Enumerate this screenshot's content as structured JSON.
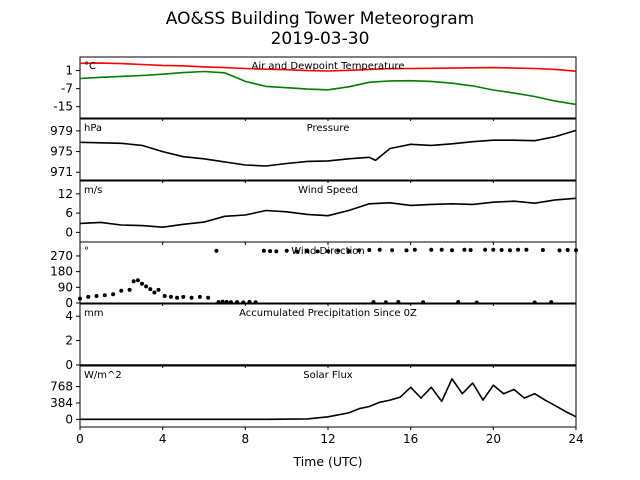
{
  "figure": {
    "title": "AO&SS Building Tower Meteorogram",
    "date": "2019-03-30",
    "xlabel": "Time (UTC)"
  },
  "chart_data": {
    "type": "line",
    "x_range": [
      0,
      24
    ],
    "x_ticks": [
      0,
      4,
      8,
      12,
      16,
      20,
      24
    ],
    "panels": [
      {
        "id": "temp",
        "title": "Air and Dewpoint Temperature",
        "unit": "°C",
        "ylim": [
          -20,
          7
        ],
        "y_ticks": [
          1,
          -7,
          -15
        ],
        "series": [
          {
            "color": "#ff0000",
            "style": "line",
            "x": [
              0,
              1,
              2,
              3,
              4,
              5,
              6,
              7,
              8,
              9,
              10,
              11,
              12,
              13,
              14,
              15,
              16,
              17,
              18,
              19,
              20,
              21,
              22,
              23,
              24
            ],
            "y": [
              4.2,
              4.3,
              4.1,
              3.7,
              3.3,
              3.1,
              2.6,
              2.3,
              1.9,
              1.6,
              1.4,
              1.0,
              0.8,
              1.1,
              1.5,
              1.8,
              1.9,
              2.0,
              2.1,
              2.2,
              2.3,
              2.1,
              1.9,
              1.5,
              0.7
            ]
          },
          {
            "color": "#008000",
            "style": "line",
            "x": [
              0,
              1,
              2,
              3,
              4,
              5,
              6,
              7,
              8,
              9,
              10,
              11,
              12,
              13,
              14,
              15,
              16,
              17,
              18,
              19,
              20,
              21,
              22,
              23,
              24
            ],
            "y": [
              -2.5,
              -2.0,
              -1.6,
              -1.2,
              -0.6,
              0.1,
              0.6,
              0.0,
              -3.8,
              -6.0,
              -6.6,
              -7.2,
              -7.5,
              -6.2,
              -4.2,
              -3.6,
              -3.5,
              -3.8,
              -4.6,
              -5.8,
              -7.6,
              -9.0,
              -10.5,
              -12.5,
              -14.0
            ]
          }
        ]
      },
      {
        "id": "pressure",
        "title": "Pressure",
        "unit": "hPa",
        "ylim": [
          969.5,
          981.3
        ],
        "y_ticks": [
          979,
          975,
          971
        ],
        "series": [
          {
            "color": "#000000",
            "style": "line",
            "x": [
              0,
              1,
              2,
              3,
              4,
              5,
              6,
              7,
              8,
              9,
              10,
              11,
              12,
              13,
              14,
              14.3,
              15,
              16,
              17,
              18,
              19,
              20,
              21,
              22,
              23,
              24
            ],
            "y": [
              976.8,
              976.7,
              976.6,
              976.2,
              975.0,
              974.0,
              973.6,
              973.0,
              972.4,
              972.2,
              972.7,
              973.1,
              973.2,
              973.6,
              973.9,
              973.3,
              975.6,
              976.4,
              976.2,
              976.5,
              976.9,
              977.2,
              977.2,
              977.1,
              977.9,
              979.1
            ]
          }
        ]
      },
      {
        "id": "wind_speed",
        "title": "Wind Speed",
        "unit": "m/s",
        "ylim": [
          -3,
          16
        ],
        "y_ticks": [
          12,
          6,
          0
        ],
        "series": [
          {
            "color": "#000000",
            "style": "line",
            "x": [
              0,
              1,
              2,
              3,
              4,
              5,
              6,
              7,
              8,
              9,
              10,
              11,
              12,
              13,
              14,
              15,
              16,
              17,
              18,
              19,
              20,
              21,
              22,
              23,
              24
            ],
            "y": [
              2.8,
              3.1,
              2.3,
              2.1,
              1.6,
              2.5,
              3.2,
              5.0,
              5.4,
              6.8,
              6.4,
              5.6,
              5.2,
              6.8,
              8.9,
              9.2,
              8.4,
              8.7,
              8.9,
              8.7,
              9.4,
              9.7,
              9.1,
              10.1,
              10.6
            ]
          }
        ]
      },
      {
        "id": "wind_dir",
        "title": "Wind Direction",
        "unit": "°",
        "ylim": [
          0,
          350
        ],
        "y_ticks": [
          270,
          180,
          90,
          0
        ],
        "series": [
          {
            "color": "#000000",
            "style": "dots",
            "x": [
              0,
              0.4,
              0.8,
              1.2,
              1.6,
              2.0,
              2.4,
              2.6,
              2.8,
              3.0,
              3.2,
              3.4,
              3.6,
              3.8,
              4.1,
              4.4,
              4.7,
              5.0,
              5.4,
              5.8,
              6.2,
              6.6,
              6.7,
              6.9,
              7.1,
              7.3,
              7.6,
              7.9,
              8.2,
              8.5,
              8.9,
              9.2,
              9.5,
              10.0,
              10.5,
              11.0,
              11.5,
              12.0,
              12.5,
              13.0,
              13.5,
              14.0,
              14.2,
              14.5,
              14.8,
              15.1,
              15.4,
              15.8,
              16.2,
              16.6,
              17.0,
              17.5,
              18.0,
              18.3,
              18.6,
              18.9,
              19.2,
              19.6,
              20.0,
              20.4,
              20.8,
              21.2,
              21.6,
              22.0,
              22.4,
              22.8,
              23.2,
              23.6,
              24.0
            ],
            "y": [
              25,
              35,
              40,
              45,
              50,
              70,
              75,
              125,
              130,
              110,
              95,
              80,
              60,
              75,
              40,
              35,
              30,
              35,
              30,
              35,
              30,
              300,
              5,
              8,
              6,
              4,
              5,
              3,
              6,
              4,
              300,
              298,
              296,
              300,
              295,
              298,
              296,
              297,
              300,
              298,
              302,
              304,
              5,
              305,
              4,
              303,
              6,
              302,
              305,
              4,
              306,
              305,
              303,
              6,
              305,
              304,
              3,
              306,
              305,
              304,
              303,
              306,
              305,
              3,
              304,
              5,
              302,
              304,
              303
            ]
          }
        ]
      },
      {
        "id": "precip",
        "title": "Accumulated Precipitation Since 0Z",
        "unit": "mm",
        "ylim": [
          0,
          5
        ],
        "y_ticks": [
          4,
          2,
          0
        ],
        "series": [
          {
            "color": "#000000",
            "style": "line",
            "x": [
              0,
              24
            ],
            "y": [
              0,
              0
            ]
          }
        ]
      },
      {
        "id": "solar",
        "title": "Solar Flux",
        "unit": "W/m^2",
        "ylim": [
          -180,
          1250
        ],
        "y_ticks": [
          768,
          384,
          0
        ],
        "series": [
          {
            "color": "#000000",
            "style": "line",
            "x": [
              0,
              6,
              9,
              11,
              12,
              13,
              13.5,
              14,
              14.5,
              15,
              15.5,
              16,
              16.5,
              17,
              17.5,
              18,
              18.5,
              19,
              19.5,
              20,
              20.5,
              21,
              21.5,
              22,
              22.5,
              23,
              23.5,
              24
            ],
            "y": [
              0,
              0,
              0,
              10,
              60,
              150,
              250,
              300,
              400,
              450,
              520,
              750,
              500,
              750,
              420,
              950,
              600,
              850,
              450,
              800,
              600,
              700,
              500,
              600,
              450,
              320,
              180,
              60
            ]
          }
        ]
      }
    ]
  }
}
